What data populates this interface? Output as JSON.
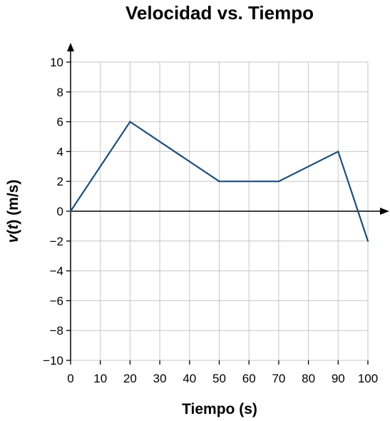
{
  "chart_data": {
    "type": "line",
    "title": "Velocidad vs. Tiempo",
    "xlabel": "Tiempo (s)",
    "ylabel_var": "v",
    "ylabel_arg": "t",
    "ylabel_unit": " (m/s)",
    "xlim": [
      0,
      100
    ],
    "ylim": [
      -10,
      10
    ],
    "xticks": [
      "0",
      "10",
      "20",
      "30",
      "40",
      "50",
      "60",
      "70",
      "80",
      "90",
      "100"
    ],
    "yticks": [
      "10",
      "8",
      "6",
      "4",
      "2",
      "0",
      "−2",
      "−4",
      "−6",
      "−8",
      "−10"
    ],
    "grid": true,
    "series": [
      {
        "color": "#1f4e79",
        "x": [
          0,
          20,
          50,
          70,
          90,
          100
        ],
        "y": [
          0,
          6,
          2,
          2,
          4,
          -2
        ]
      }
    ]
  }
}
